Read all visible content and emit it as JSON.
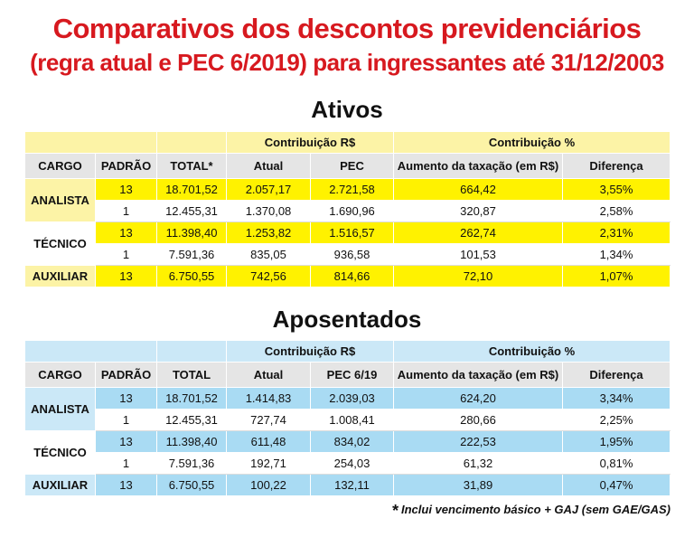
{
  "title_line1": "Comparativos dos descontos previdenciários",
  "title_line2": "(regra atual e PEC 6/2019) para ingressantes até 31/12/2003",
  "ativos": {
    "heading": "Ativos",
    "group_rs": "Contribuição R$",
    "group_pct": "Contribuição %",
    "columns": [
      "CARGO",
      "PADRÃO",
      "TOTAL*",
      "Atual",
      "PEC",
      "Aumento da taxação (em R$)",
      "Diferença"
    ],
    "rows": [
      {
        "cargo": "ANALISTA",
        "padrao": "13",
        "total": "18.701,52",
        "atual": "2.057,17",
        "pec": "2.721,58",
        "aumento": "664,42",
        "diferenca": "3,55%"
      },
      {
        "cargo": "",
        "padrao": "1",
        "total": "12.455,31",
        "atual": "1.370,08",
        "pec": "1.690,96",
        "aumento": "320,87",
        "diferenca": "2,58%"
      },
      {
        "cargo": "TÉCNICO",
        "padrao": "13",
        "total": "11.398,40",
        "atual": "1.253,82",
        "pec": "1.516,57",
        "aumento": "262,74",
        "diferenca": "2,31%"
      },
      {
        "cargo": "",
        "padrao": "1",
        "total": "7.591,36",
        "atual": "835,05",
        "pec": "936,58",
        "aumento": "101,53",
        "diferenca": "1,34%"
      },
      {
        "cargo": "AUXILIAR",
        "padrao": "13",
        "total": "6.750,55",
        "atual": "742,56",
        "pec": "814,66",
        "aumento": "72,10",
        "diferenca": "1,07%"
      }
    ]
  },
  "aposentados": {
    "heading": "Aposentados",
    "group_rs": "Contribuição R$",
    "group_pct": "Contribuição %",
    "columns": [
      "CARGO",
      "PADRÃO",
      "TOTAL",
      "Atual",
      "PEC 6/19",
      "Aumento da taxação (em R$)",
      "Diferença"
    ],
    "rows": [
      {
        "cargo": "ANALISTA",
        "padrao": "13",
        "total": "18.701,52",
        "atual": "1.414,83",
        "pec": "2.039,03",
        "aumento": "624,20",
        "diferenca": "3,34%"
      },
      {
        "cargo": "",
        "padrao": "1",
        "total": "12.455,31",
        "atual": "727,74",
        "pec": "1.008,41",
        "aumento": "280,66",
        "diferenca": "2,25%"
      },
      {
        "cargo": "TÉCNICO",
        "padrao": "13",
        "total": "11.398,40",
        "atual": "611,48",
        "pec": "834,02",
        "aumento": "222,53",
        "diferenca": "1,95%"
      },
      {
        "cargo": "",
        "padrao": "1",
        "total": "7.591,36",
        "atual": "192,71",
        "pec": "254,03",
        "aumento": "61,32",
        "diferenca": "0,81%"
      },
      {
        "cargo": "AUXILIAR",
        "padrao": "13",
        "total": "6.750,55",
        "atual": "100,22",
        "pec": "132,11",
        "aumento": "31,89",
        "diferenca": "0,47%"
      }
    ]
  },
  "footnote_mark": "*",
  "footnote": "Inclui vencimento básico + GAJ (sem GAE/GAS)"
}
